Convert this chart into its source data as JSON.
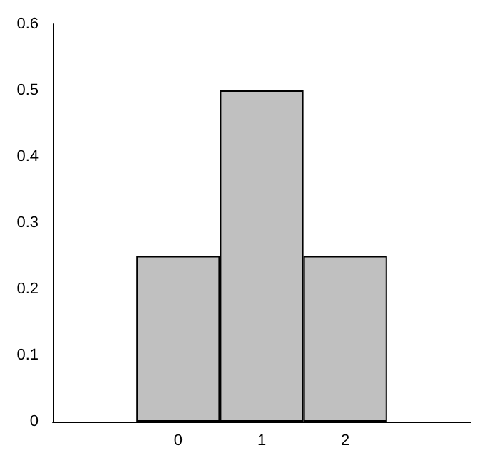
{
  "chart_data": {
    "type": "bar",
    "categories": [
      null,
      "0",
      "1",
      "2",
      null
    ],
    "values": [
      null,
      0.25,
      0.5,
      0.25,
      null
    ],
    "color": "#c0c0c0",
    "ylim": [
      0,
      0.6
    ],
    "yticks": [
      0,
      0.1,
      0.2,
      0.3,
      0.4,
      0.5,
      0.6
    ],
    "grid": false
  }
}
